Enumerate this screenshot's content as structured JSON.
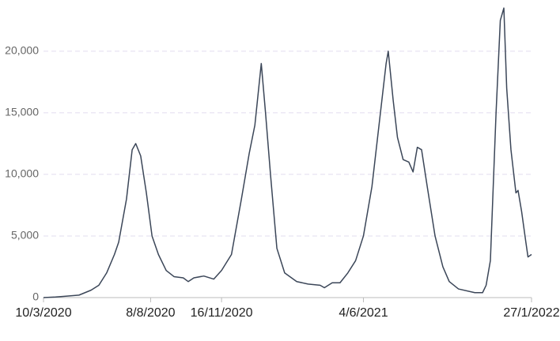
{
  "chart_data": {
    "type": "line",
    "x": [
      "10/3/2020",
      "27/3/2020",
      "7/4/2020",
      "29/4/2020",
      "16/5/2020",
      "27/5/2020",
      "7/6/2020",
      "18/6/2020",
      "24/6/2020",
      "5/7/2020",
      "13/7/2020",
      "18/7/2020",
      "25/7/2020",
      "2/8/2020",
      "10/8/2020",
      "19/8/2020",
      "30/8/2020",
      "10/9/2020",
      "23/9/2020",
      "30/9/2020",
      "8/10/2020",
      "22/10/2020",
      "5/11/2020",
      "16/11/2020",
      "30/11/2020",
      "14/12/2020",
      "25/12/2020",
      "2/1/2021",
      "11/1/2021",
      "17/1/2021",
      "24/1/2021",
      "2/2/2021",
      "13/2/2021",
      "2/3/2021",
      "18/3/2021",
      "4/4/2021",
      "10/4/2021",
      "21/4/2021",
      "2/5/2021",
      "13/5/2021",
      "24/5/2021",
      "4/6/2021",
      "16/6/2021",
      "27/6/2021",
      "6/7/2021",
      "9/7/2021",
      "16/7/2021",
      "22/7/2021",
      "30/7/2021",
      "7/8/2021",
      "13/8/2021",
      "19/8/2021",
      "25/8/2021",
      "2/9/2021",
      "13/9/2021",
      "24/9/2021",
      "3/10/2021",
      "16/10/2021",
      "8/11/2021",
      "19/11/2021",
      "24/11/2021",
      "30/11/2021",
      "8/12/2021",
      "14/12/2021",
      "19/12/2021",
      "23/12/2021",
      "29/12/2021",
      "5/1/2022",
      "8/1/2022",
      "13/1/2022",
      "19/1/2022",
      "22/1/2022",
      "27/1/2022"
    ],
    "series": [
      {
        "color": "#3b4658",
        "values": [
          0,
          50,
          100,
          200,
          600,
          1000,
          2000,
          3500,
          4500,
          8000,
          12000,
          12500,
          11500,
          8500,
          5000,
          3500,
          2200,
          1700,
          1600,
          1300,
          1600,
          1750,
          1500,
          2200,
          3500,
          8000,
          11700,
          14000,
          19000,
          15000,
          10000,
          4000,
          2000,
          1300,
          1100,
          1000,
          800,
          1200,
          1200,
          2000,
          3000,
          5000,
          9000,
          14500,
          19000,
          20000,
          16000,
          13000,
          11200,
          11000,
          10200,
          12200,
          12000,
          9000,
          5000,
          2500,
          1300,
          700,
          400,
          400,
          1000,
          3000,
          15000,
          22500,
          23500,
          17000,
          12000,
          8500,
          8700,
          7000,
          4500,
          3300,
          3500
        ]
      }
    ],
    "xlim": [
      "10/3/2020",
      "27/1/2022"
    ],
    "xticks": [
      "10/3/2020",
      "8/8/2020",
      "16/11/2020",
      "4/6/2021",
      "27/1/2022"
    ],
    "ylim": [
      0,
      24000
    ],
    "yticks": [
      0,
      {
        "value": 5000,
        "label": "5,000"
      },
      {
        "value": 10000,
        "label": "10,000"
      },
      {
        "value": 15000,
        "label": "15,000"
      },
      {
        "value": 20000,
        "label": "20,000"
      }
    ],
    "grid": true
  }
}
